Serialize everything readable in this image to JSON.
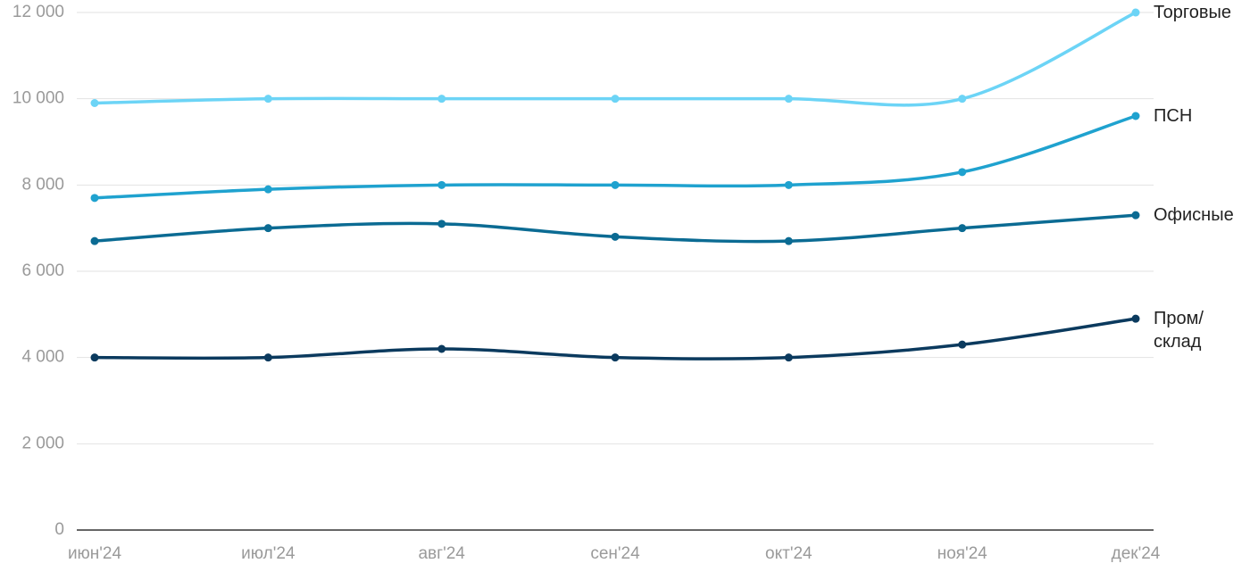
{
  "chart_data": {
    "type": "line",
    "categories": [
      "июн'24",
      "июл'24",
      "авг'24",
      "сен'24",
      "окт'24",
      "ноя'24",
      "дек'24"
    ],
    "series": [
      {
        "name": "Торговые",
        "color": "#6cd4f6",
        "values": [
          9900,
          10000,
          10000,
          10000,
          10000,
          10000,
          12000
        ]
      },
      {
        "name": "ПСН",
        "color": "#1fa2cf",
        "values": [
          7700,
          7900,
          8000,
          8000,
          8000,
          8300,
          9600
        ]
      },
      {
        "name": "Офисные",
        "color": "#0b6b93",
        "values": [
          6700,
          7000,
          7100,
          6800,
          6700,
          7000,
          7300
        ]
      },
      {
        "name": "Пром/ склад",
        "color": "#0b3a5e",
        "values": [
          4000,
          4000,
          4200,
          4000,
          4000,
          4300,
          4900
        ]
      }
    ],
    "ylim": [
      0,
      12000
    ],
    "yticks": [
      0,
      {
        "value": 2000,
        "label": "2 000"
      },
      {
        "value": 4000,
        "label": "4 000"
      },
      {
        "value": 6000,
        "label": "6 000"
      },
      {
        "value": 8000,
        "label": "8 000"
      },
      {
        "value": 10000,
        "label": "10 000"
      },
      {
        "value": 12000,
        "label": "12 000"
      }
    ],
    "grid": true
  }
}
